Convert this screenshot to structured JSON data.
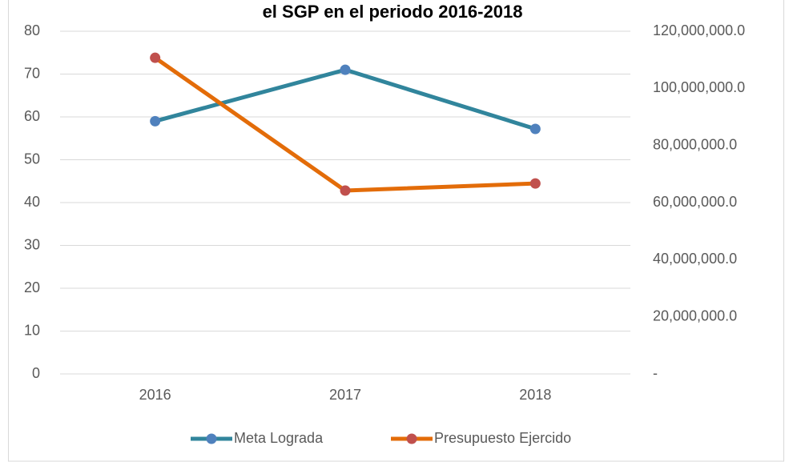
{
  "chart_data": {
    "type": "line",
    "title": "el SGP en el periodo 2016-2018",
    "categories": [
      "2016",
      "2017",
      "2018"
    ],
    "series": [
      {
        "name": "Meta Lograda",
        "color": "#31859c",
        "marker_color": "#4f81bd",
        "values": [
          59,
          71,
          57.2
        ]
      },
      {
        "name": "Presupuesto Ejercido",
        "color": "#e36c09",
        "marker_color": "#c0504d",
        "axis": "y2",
        "values": [
          110700000,
          64200000,
          66700000
        ]
      }
    ],
    "ylim": [
      0,
      80
    ],
    "yticks": [
      0,
      10,
      20,
      30,
      40,
      50,
      60,
      70,
      80
    ],
    "y2lim": [
      0,
      120000000
    ],
    "y2ticks": [
      {
        "value": 0,
        "label": "-"
      },
      {
        "value": 20000000,
        "label": "20,000,000.0"
      },
      {
        "value": 40000000,
        "label": "40,000,000.0"
      },
      {
        "value": 60000000,
        "label": "60,000,000.0"
      },
      {
        "value": 80000000,
        "label": "80,000,000.0"
      },
      {
        "value": 100000000,
        "label": "100,000,000.0"
      },
      {
        "value": 120000000,
        "label": "120,000,000.0"
      }
    ],
    "grid": true,
    "legend": "bottom"
  }
}
